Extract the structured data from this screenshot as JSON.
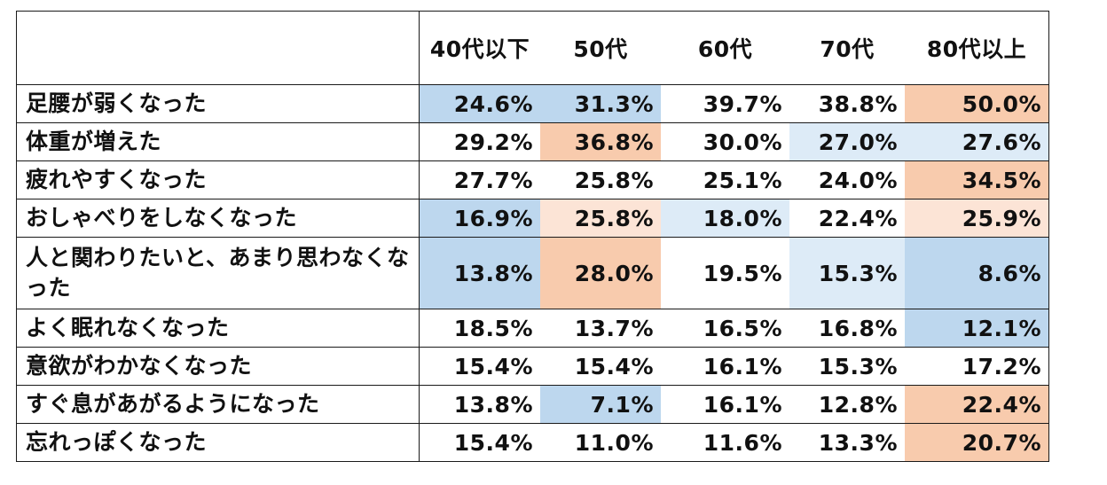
{
  "chart_data": {
    "type": "table",
    "columns": [
      "40代以下",
      "50代",
      "60代",
      "70代",
      "80代以上"
    ],
    "rows": [
      {
        "label": "足腰が弱くなった",
        "values": [
          "24.6%",
          "31.3%",
          "39.7%",
          "38.8%",
          "50.0%"
        ],
        "shade": [
          "blue",
          "blue",
          "none",
          "none",
          "orange"
        ]
      },
      {
        "label": "体重が増えた",
        "values": [
          "29.2%",
          "36.8%",
          "30.0%",
          "27.0%",
          "27.6%"
        ],
        "shade": [
          "none",
          "orange",
          "none",
          "lightblue",
          "lightblue"
        ]
      },
      {
        "label": "疲れやすくなった",
        "values": [
          "27.7%",
          "25.8%",
          "25.1%",
          "24.0%",
          "34.5%"
        ],
        "shade": [
          "none",
          "none",
          "none",
          "none",
          "orange"
        ]
      },
      {
        "label": "おしゃべりをしなくなった",
        "values": [
          "16.9%",
          "25.8%",
          "18.0%",
          "22.4%",
          "25.9%"
        ],
        "shade": [
          "blue",
          "lightorange",
          "lightblue",
          "none",
          "lightorange"
        ]
      },
      {
        "label": "人と関わりたいと、あまり思わなくなった",
        "values": [
          "13.8%",
          "28.0%",
          "19.5%",
          "15.3%",
          "8.6%"
        ],
        "shade": [
          "blue",
          "orange",
          "none",
          "lightblue",
          "blue"
        ]
      },
      {
        "label": "よく眠れなくなった",
        "values": [
          "18.5%",
          "13.7%",
          "16.5%",
          "16.8%",
          "12.1%"
        ],
        "shade": [
          "none",
          "none",
          "none",
          "none",
          "blue"
        ]
      },
      {
        "label": "意欲がわかなくなった",
        "values": [
          "15.4%",
          "15.4%",
          "16.1%",
          "15.3%",
          "17.2%"
        ],
        "shade": [
          "none",
          "none",
          "none",
          "none",
          "none"
        ]
      },
      {
        "label": "すぐ息があがるようになった",
        "values": [
          "13.8%",
          "7.1%",
          "16.1%",
          "12.8%",
          "22.4%"
        ],
        "shade": [
          "none",
          "blue",
          "none",
          "none",
          "orange"
        ]
      },
      {
        "label": "忘れっぽくなった",
        "values": [
          "15.4%",
          "11.0%",
          "11.6%",
          "13.3%",
          "20.7%"
        ],
        "shade": [
          "none",
          "none",
          "none",
          "none",
          "orange"
        ]
      }
    ]
  },
  "colors": {
    "blue": "#bdd7ee",
    "lightblue": "#ddebf7",
    "orange": "#f8cbad",
    "lightorange": "#fce4d6",
    "none": "#ffffff"
  }
}
